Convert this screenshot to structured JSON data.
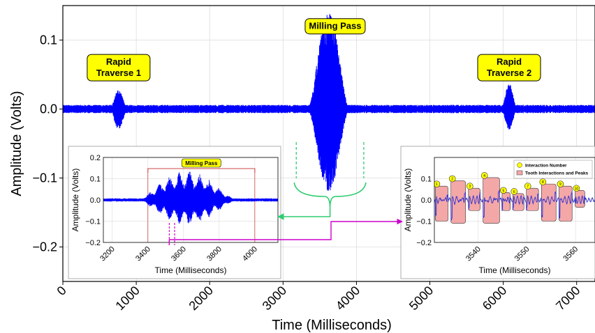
{
  "chart_data": [
    {
      "id": "main",
      "type": "line",
      "xlabel": "Time (Milliseconds)",
      "ylabel": "Amplitude (Volts)",
      "xlim": [
        0,
        7250
      ],
      "ylim": [
        -0.25,
        0.15
      ],
      "x_ticks": [
        0,
        1000,
        2000,
        3000,
        4000,
        5000,
        6000,
        7000
      ],
      "x_tick_labels": [
        "0",
        "1000",
        "2000",
        "3000",
        "4000",
        "5000",
        "6000",
        "7000"
      ],
      "y_ticks": [
        -0.2,
        -0.1,
        0.0,
        0.1
      ],
      "y_tick_labels": [
        "−0.2",
        "−0.1",
        "0.0",
        "0.1"
      ],
      "grid": true,
      "series_color": "#0000ff",
      "signal": {
        "baseline_noise": 0.004,
        "bursts": [
          {
            "center": 760,
            "width": 230,
            "pos_peak": 0.028,
            "neg_peak": -0.03
          },
          {
            "center": 3620,
            "width": 560,
            "pos_peak": 0.14,
            "neg_peak": -0.12
          },
          {
            "center": 6080,
            "width": 210,
            "pos_peak": 0.037,
            "neg_peak": -0.03
          }
        ]
      },
      "annotations": [
        {
          "text_lines": [
            "Rapid",
            "Traverse 1"
          ],
          "x": 760,
          "y": 0.06
        },
        {
          "text_lines": [
            "Milling Pass"
          ],
          "x": 3710,
          "y": 0.12
        },
        {
          "text_lines": [
            "Rapid",
            "Traverse 2"
          ],
          "x": 6080,
          "y": 0.06
        }
      ],
      "bracket_range": [
        3180,
        4100
      ],
      "annotation_bg": "#ffff00"
    },
    {
      "id": "inset-left",
      "type": "line",
      "xlabel": "Time (Milliseconds)",
      "ylabel": "Amplitude (Volts)",
      "xlim": [
        3150,
        4130
      ],
      "ylim": [
        -0.2,
        0.2
      ],
      "x_ticks": [
        3200,
        3400,
        3600,
        3800,
        4000
      ],
      "x_tick_labels": [
        "3200",
        "3400",
        "3600",
        "3800",
        "4000"
      ],
      "y_ticks": [
        -0.2,
        -0.1,
        0.0,
        0.1,
        0.2
      ],
      "y_tick_labels": [
        "−0.2",
        "−0.1",
        "0.0",
        "0.1",
        "0.2"
      ],
      "grid": true,
      "series_color": "#0000ff",
      "milling_window": [
        3400,
        4000
      ],
      "highlight_window": [
        3520,
        3550
      ],
      "signal": {
        "center": 3620,
        "width": 560,
        "pos_peak": 0.14,
        "neg_peak": -0.12,
        "baseline_noise": 0.005
      },
      "annotation": {
        "text": "Milling Pass",
        "x": 3700
      }
    },
    {
      "id": "inset-right",
      "type": "line",
      "xlabel": "Time (Milliseconds)",
      "ylabel": "Amplitude (Volts)",
      "xlim": [
        3531,
        3564
      ],
      "ylim": [
        -0.2,
        0.2
      ],
      "x_ticks": [
        3540,
        3550,
        3560
      ],
      "x_tick_labels": [
        "3540",
        "3550",
        "3560"
      ],
      "y_ticks": [
        -0.2,
        -0.1,
        0.0,
        0.1
      ],
      "y_tick_labels": [
        "−0.2",
        "−0.1",
        "0.0",
        "0.1"
      ],
      "grid": true,
      "series_color": "#3333cc",
      "legend": {
        "placement": "top-right",
        "entries": [
          {
            "label": "Interaction Number",
            "marker": "circle",
            "color": "#ffff00"
          },
          {
            "label": "Tooth Interactions and Peaks",
            "marker": "box",
            "color": "#f4a7a7"
          }
        ]
      },
      "interactions": [
        {
          "n": "1",
          "start": 3531.2,
          "end": 3533.8,
          "top": 0.065,
          "bottom": -0.1
        },
        {
          "n": "2",
          "start": 3534.4,
          "end": 3537.4,
          "top": 0.09,
          "bottom": -0.11
        },
        {
          "n": "3",
          "start": 3538.0,
          "end": 3540.4,
          "top": 0.055,
          "bottom": -0.05
        },
        {
          "n": "4",
          "start": 3541.0,
          "end": 3544.4,
          "top": 0.105,
          "bottom": -0.11
        },
        {
          "n": "5",
          "start": 3544.9,
          "end": 3546.6,
          "top": 0.035,
          "bottom": -0.05
        },
        {
          "n": "6",
          "start": 3547.1,
          "end": 3549.4,
          "top": 0.03,
          "bottom": -0.05
        },
        {
          "n": "7",
          "start": 3549.9,
          "end": 3552.4,
          "top": 0.055,
          "bottom": -0.05
        },
        {
          "n": "8",
          "start": 3553.0,
          "end": 3556.0,
          "top": 0.075,
          "bottom": -0.1
        },
        {
          "n": "9",
          "start": 3556.6,
          "end": 3559.3,
          "top": 0.065,
          "bottom": -0.1
        },
        {
          "n": "10",
          "start": 3559.9,
          "end": 3561.9,
          "top": 0.045,
          "bottom": -0.035
        }
      ]
    }
  ],
  "colors": {
    "bracket": "#2ecc71",
    "connector": "#cc00cc",
    "window": "#cc4444",
    "inset_dash": "#cc00cc"
  }
}
